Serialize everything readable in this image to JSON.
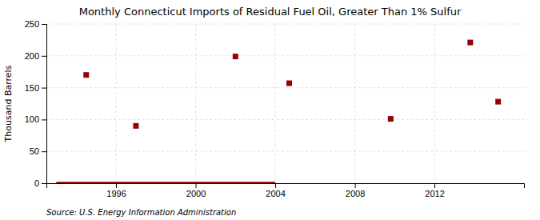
{
  "chart_data": {
    "type": "scatter",
    "title": "Monthly Connecticut Imports of Residual Fuel Oil, Greater Than 1% Sulfur",
    "ylabel": "Thousand Barrels",
    "annotation": "Source: U.S. Energy Information Administration",
    "series": [
      {
        "type": "line",
        "color": "#990000",
        "x": [
          1993.0,
          2004.0
        ],
        "values": [
          0,
          0
        ]
      },
      {
        "type": "scatter",
        "color": "#990000",
        "marker": "square",
        "x": [
          1994.5,
          1997.0,
          2002.0,
          2004.7,
          2009.8,
          2013.8,
          2015.2
        ],
        "values": [
          170,
          90,
          199,
          157,
          101,
          221,
          128
        ]
      }
    ],
    "xlim": [
      1992.5,
      2016.5
    ],
    "xticks": [
      1996,
      2000,
      2004,
      2008,
      2012
    ],
    "ylim": [
      0,
      250
    ],
    "yticks": [
      0,
      50,
      100,
      150,
      200,
      250
    ],
    "grid": true
  }
}
